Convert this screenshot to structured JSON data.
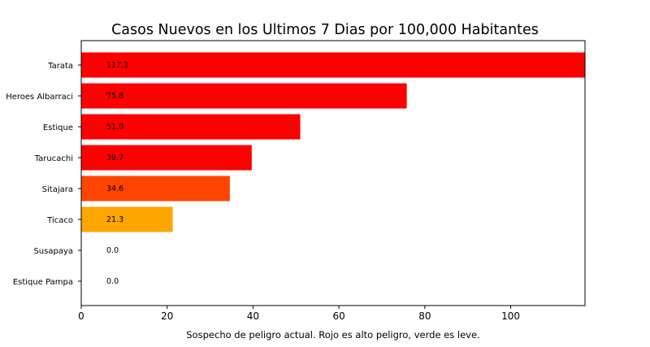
{
  "chart_data": {
    "type": "bar",
    "orientation": "horizontal",
    "title": "Casos Nuevos en los Ultimos 7 Dias por 100,000 Habitantes",
    "xlabel": "Sospecho de peligro actual. Rojo es alto peligro, verde es leve.",
    "ylabel": "",
    "xlim": [
      0,
      117.3
    ],
    "xticks": [
      0,
      20,
      40,
      60,
      80,
      100
    ],
    "xtick_labels": [
      "0",
      "20",
      "40",
      "60",
      "80",
      "100"
    ],
    "grid": false,
    "categories": [
      "Tarata",
      "Heroes Albarraci",
      "Estique",
      "Tarucachi",
      "Sitajara",
      "Ticaco",
      "Susapaya",
      "Estique Pampa"
    ],
    "values": [
      117.3,
      75.8,
      51.0,
      39.7,
      34.6,
      21.3,
      0.0,
      0.0
    ],
    "value_labels": [
      "117.3",
      "75.8",
      "51.0",
      "39.7",
      "34.6",
      "21.3",
      "0.0",
      "0.0"
    ],
    "colors": [
      "#ff0000",
      "#ff0000",
      "#ff0000",
      "#ff0000",
      "#ff4500",
      "#ffa500",
      "#ffa500",
      "#ffa500"
    ]
  }
}
